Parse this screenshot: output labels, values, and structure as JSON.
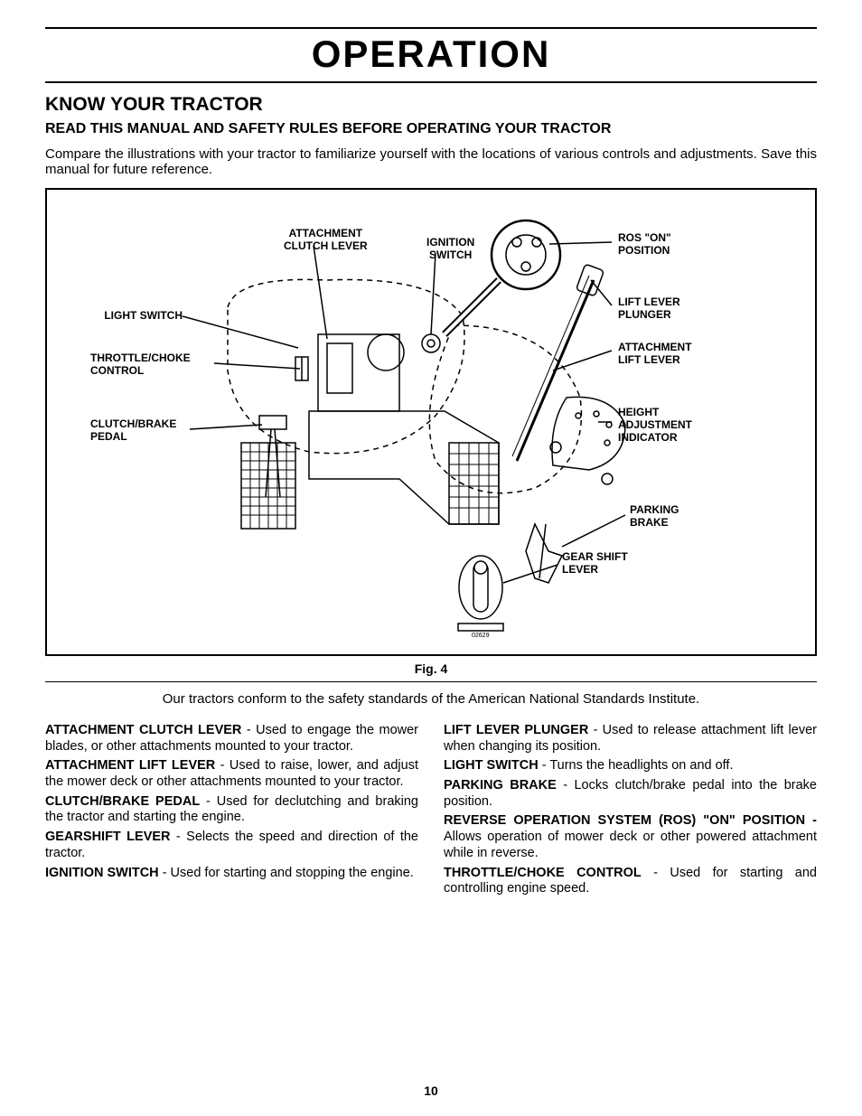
{
  "page": {
    "title": "OPERATION",
    "section_title": "KNOW YOUR TRACTOR",
    "sub_title": "READ THIS MANUAL AND SAFETY RULES BEFORE OPERATING YOUR TRACTOR",
    "intro": "Compare the illustrations with your tractor to familiarize yourself with the locations of various controls and adjustments. Save this manual for future reference.",
    "fig_caption": "Fig. 4",
    "conform": "Our tractors conform to the safety standards of the American National Standards Institute.",
    "page_number": "10"
  },
  "diagram": {
    "labels": {
      "attachment_clutch_lever": {
        "l1": "ATTACHMENT",
        "l2": "CLUTCH LEVER"
      },
      "ignition_switch": {
        "l1": "IGNITION",
        "l2": "SWITCH"
      },
      "ros_on_position": {
        "l1": "ROS \"ON\"",
        "l2": "POSITION"
      },
      "light_switch": {
        "l1": "LIGHT SWITCH"
      },
      "lift_lever_plunger": {
        "l1": "LIFT LEVER",
        "l2": "PLUNGER"
      },
      "throttle_choke": {
        "l1": "THROTTLE/CHOKE",
        "l2": "CONTROL"
      },
      "attachment_lift_lever": {
        "l1": "ATTACHMENT",
        "l2": "LIFT LEVER"
      },
      "clutch_brake_pedal": {
        "l1": "CLUTCH/BRAKE",
        "l2": "PEDAL"
      },
      "height_adjustment": {
        "l1": "HEIGHT",
        "l2": "ADJUSTMENT",
        "l3": "INDICATOR"
      },
      "parking_brake": {
        "l1": "PARKING",
        "l2": "BRAKE"
      },
      "gear_shift_lever": {
        "l1": "GEAR SHIFT",
        "l2": "LEVER"
      }
    }
  },
  "definitions": {
    "left": [
      {
        "term": "ATTACHMENT CLUTCH LEVER",
        "desc": " - Used to engage the mower blades, or other attachments mounted to your tractor."
      },
      {
        "term": "ATTACHMENT LIFT LEVER",
        "desc": " - Used to raise, lower, and adjust the mower deck or other attachments mounted to your tractor."
      },
      {
        "term": "CLUTCH/BRAKE PEDAL",
        "desc": " - Used for declutching and braking the tractor and starting the engine."
      },
      {
        "term": "GEARSHIFT  LEVER",
        "desc": " - Selects the speed and direction of the tractor."
      },
      {
        "term": "IGNITION SWITCH",
        "desc": " - Used for starting and stopping the engine."
      }
    ],
    "right": [
      {
        "term": "LIFT LEVER PLUNGER",
        "desc": " - Used to release attachment lift lever when changing its position."
      },
      {
        "term": "LIGHT SWITCH",
        "desc": " - Turns the headlights on and off."
      },
      {
        "term": "PARKING BRAKE",
        "desc": " - Locks clutch/brake pedal into the brake position."
      },
      {
        "term": "REVERSE OPERATION SYSTEM (ROS) \"ON\"  POSITION - ",
        "desc": "Allows operation of mower deck or other powered attachment while in reverse."
      },
      {
        "term": "THROTTLE/CHOKE CONTROL",
        "desc": " - Used for starting and controlling engine speed."
      }
    ]
  }
}
